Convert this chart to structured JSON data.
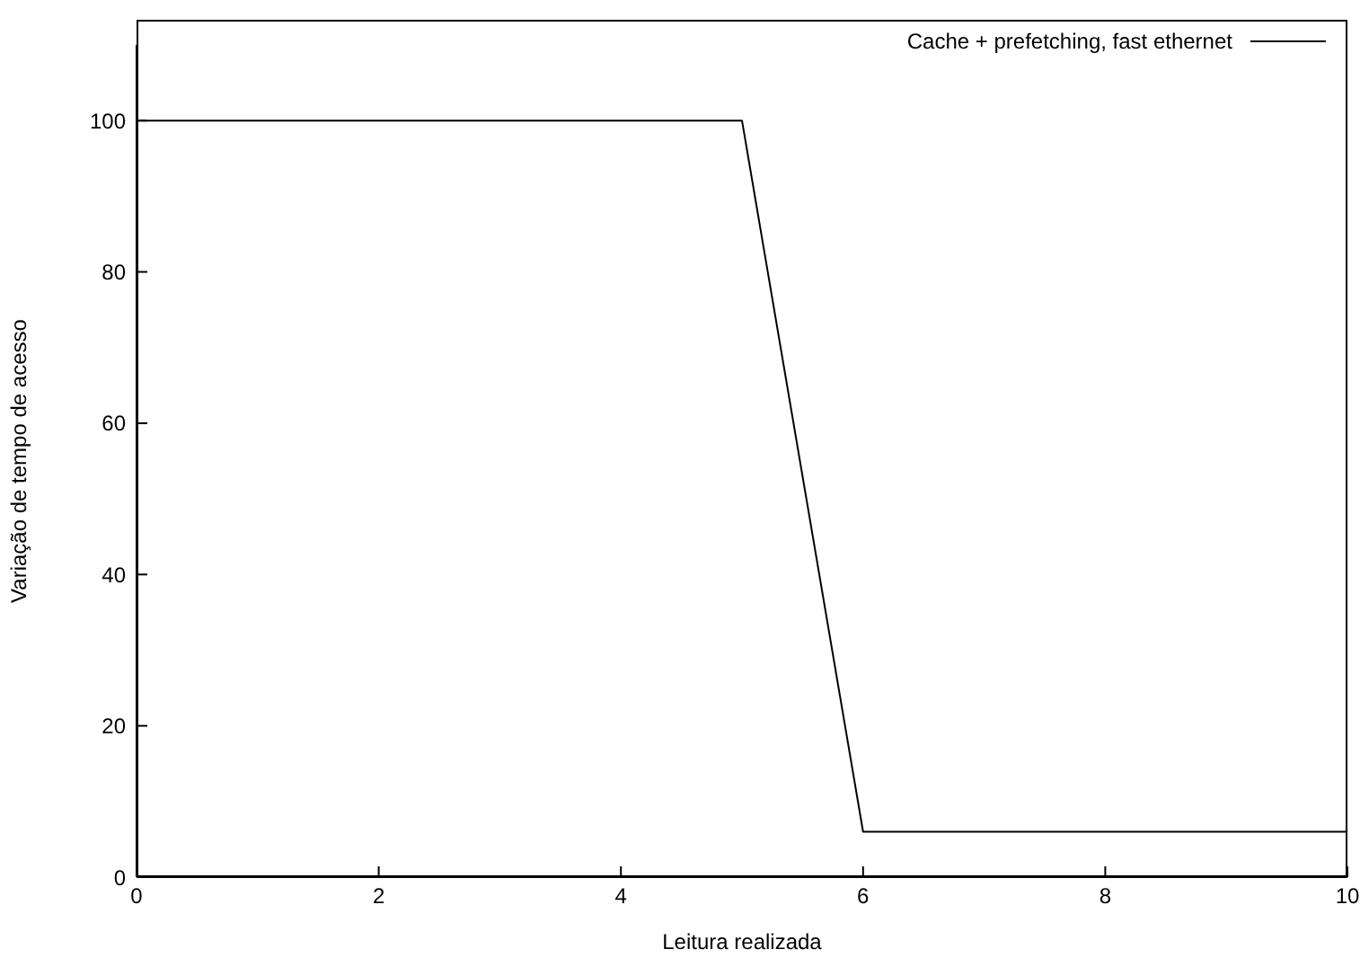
{
  "chart_data": {
    "type": "line",
    "xlabel": "Leitura realizada",
    "ylabel": "Variação de tempo de acesso",
    "x": [
      0,
      1,
      2,
      3,
      4,
      5,
      6,
      7,
      8,
      9,
      10
    ],
    "series": [
      {
        "name": "Cache + prefetching, fast ethernet",
        "color": "#000000",
        "values": [
          100,
          100,
          100,
          100,
          100,
          100,
          6,
          6,
          6,
          6,
          6
        ]
      }
    ],
    "xlim": [
      0,
      10
    ],
    "xticks": [
      0,
      2,
      4,
      6,
      8,
      10
    ],
    "ylim": [
      0,
      110
    ],
    "yticks": [
      0,
      20,
      40,
      60,
      80,
      100
    ],
    "grid": false,
    "legend": "top right",
    "marker": "none",
    "line_style": "solid"
  }
}
